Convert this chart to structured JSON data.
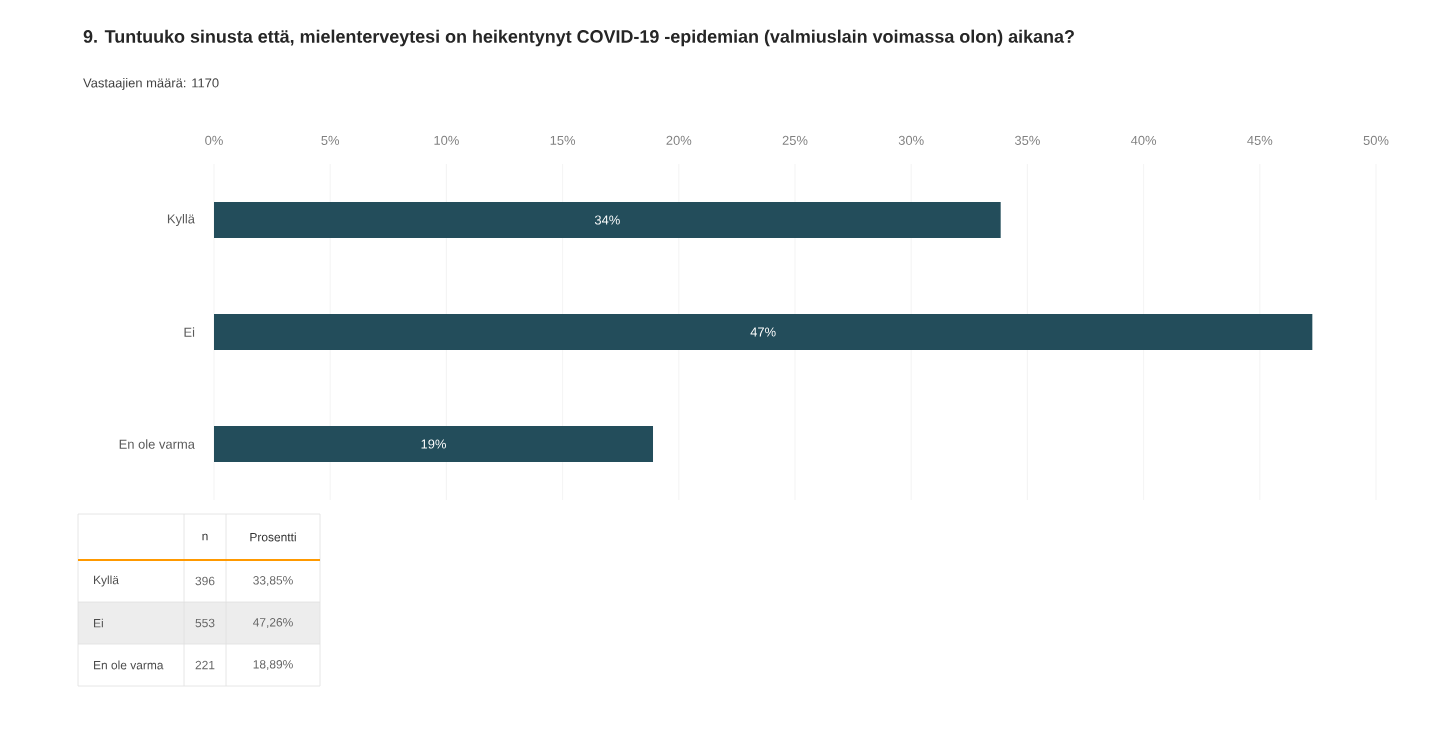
{
  "chart_data": {
    "type": "bar",
    "orientation": "horizontal",
    "title": "9. Tuntuuko sinusta että, mielenterveytesi on heikentynyt COVID-19 -epidemian (valmiuslain voimassa olon) aikana?",
    "subtitle": "Vastaajien määrä: 1170",
    "categories": [
      "Kyllä",
      "Ei",
      "En ole varma"
    ],
    "values": [
      33.85,
      47.26,
      18.89
    ],
    "value_labels": [
      "34%",
      "47%",
      "19%"
    ],
    "color": "#234d5b",
    "xlim": [
      0,
      50
    ],
    "xticks": [
      {
        "value": 0,
        "label": "0%"
      },
      {
        "value": 5,
        "label": "5%"
      },
      {
        "value": 10,
        "label": "10%"
      },
      {
        "value": 15,
        "label": "15%"
      },
      {
        "value": 20,
        "label": "20%"
      },
      {
        "value": 25,
        "label": "25%"
      },
      {
        "value": 30,
        "label": "30%"
      },
      {
        "value": 35,
        "label": "35%"
      },
      {
        "value": 40,
        "label": "40%"
      },
      {
        "value": 45,
        "label": "45%"
      },
      {
        "value": 50,
        "label": "50%"
      }
    ],
    "grid": "x",
    "annotations": [
      "n",
      "Prosentti",
      "396",
      "33,85%",
      "553",
      "47,26%",
      "221",
      "18,89%"
    ]
  }
}
